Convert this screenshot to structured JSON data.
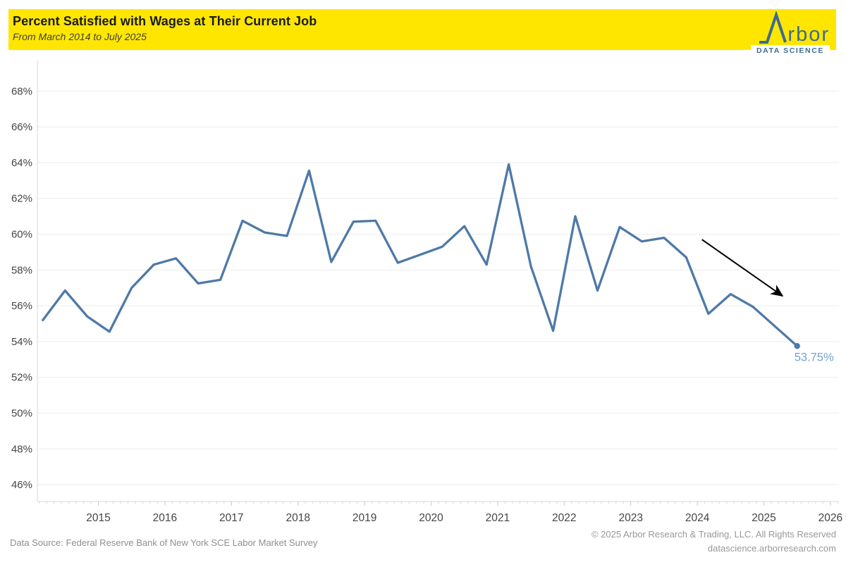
{
  "header": {
    "title": "Percent Satisfied with Wages at Their Current Job",
    "subtitle": "From March 2014 to July 2025",
    "banner_color": "#ffe600"
  },
  "logo": {
    "name": "Arbor Data Science",
    "wordmark_suffix": "rbor",
    "tagline": "DATA SCIENCE",
    "color": "#3e6b91"
  },
  "chart_data": {
    "type": "line",
    "title": "Percent Satisfied with Wages at Their Current Job",
    "series_name": "Percent satisfied with wages at current job",
    "x": [
      "2014-03",
      "2014-07",
      "2014-11",
      "2015-03",
      "2015-07",
      "2015-11",
      "2016-03",
      "2016-07",
      "2016-11",
      "2017-03",
      "2017-07",
      "2017-11",
      "2018-03",
      "2018-07",
      "2018-11",
      "2019-03",
      "2019-07",
      "2019-11",
      "2020-03",
      "2020-07",
      "2020-11",
      "2021-03",
      "2021-07",
      "2021-11",
      "2022-03",
      "2022-07",
      "2022-11",
      "2023-03",
      "2023-07",
      "2023-11",
      "2024-03",
      "2024-07",
      "2024-11",
      "2025-03",
      "2025-07"
    ],
    "values": [
      55.2,
      56.85,
      55.4,
      54.55,
      57.0,
      58.3,
      58.65,
      57.25,
      57.45,
      60.75,
      60.1,
      59.9,
      63.55,
      58.45,
      60.7,
      60.75,
      58.4,
      58.85,
      59.3,
      60.45,
      58.3,
      63.9,
      58.2,
      54.6,
      61.0,
      56.85,
      60.4,
      59.6,
      59.8,
      58.7,
      55.55,
      56.65,
      55.95,
      54.85,
      53.75
    ],
    "y_ticks": [
      46,
      48,
      50,
      52,
      54,
      56,
      58,
      60,
      62,
      64,
      66,
      68
    ],
    "y_tick_suffix": "%",
    "x_tick_years": [
      2015,
      2016,
      2017,
      2018,
      2019,
      2020,
      2021,
      2022,
      2023,
      2024,
      2025,
      2026
    ],
    "ylim": [
      45,
      69
    ],
    "grid": "horizontal",
    "legend_position": "none",
    "line_color": "#4e79a7",
    "end_point_label": "53.75%",
    "end_label_color": "#74a3d3",
    "annotation_arrow": {
      "from_x": 2024.07,
      "from_y": 59.7,
      "to_x": 2025.26,
      "to_y": 56.6,
      "color": "#000000"
    }
  },
  "footer": {
    "source": "Data Source: Federal Reserve Bank of New York SCE Labor Market Survey",
    "copyright": "© 2025 Arbor Research & Trading, LLC. All Rights Reserved",
    "website": "datascience.arborresearch.com"
  }
}
